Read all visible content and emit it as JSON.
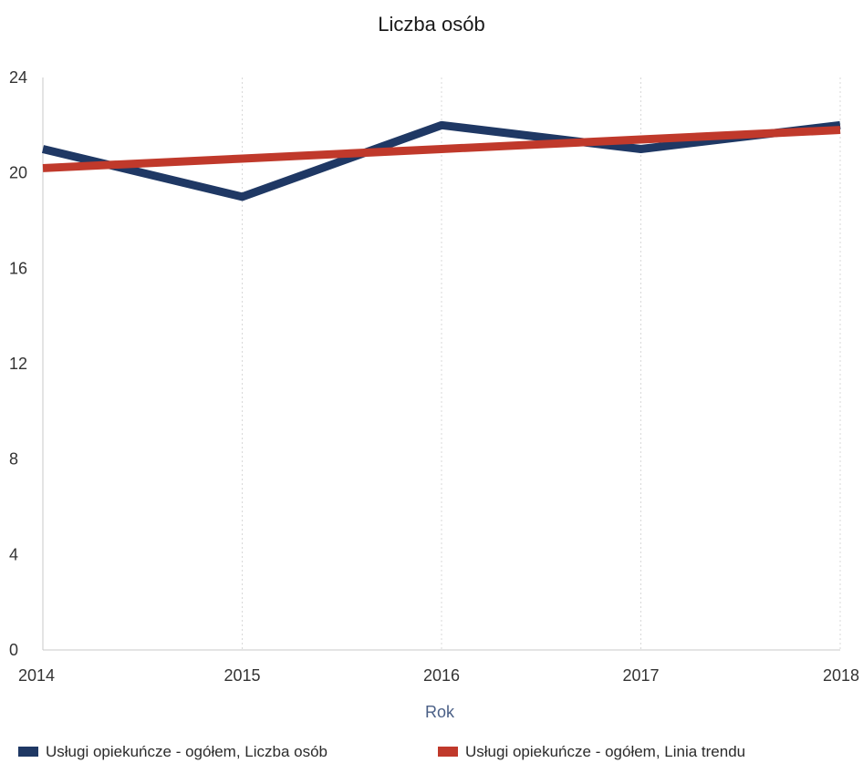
{
  "chart_data": {
    "type": "line",
    "title": "Liczba osób",
    "xlabel": "Rok",
    "ylabel": "",
    "x": [
      "2014",
      "2015",
      "2016",
      "2017",
      "2018"
    ],
    "ylim": [
      0,
      24
    ],
    "yticks": [
      "0",
      "4",
      "8",
      "12",
      "16",
      "20",
      "24"
    ],
    "grid": true,
    "legend_position": "bottom",
    "series": [
      {
        "name": "Usługi opiekuńcze - ogółem, Liczba osób",
        "values": [
          21,
          19,
          22,
          21,
          22
        ],
        "color": "#1f3864"
      },
      {
        "name": "Usługi opiekuńcze - ogółem, Linia trendu",
        "values": [
          20.2,
          20.6,
          21.0,
          21.4,
          21.8
        ],
        "color": "#c0392b"
      }
    ]
  }
}
